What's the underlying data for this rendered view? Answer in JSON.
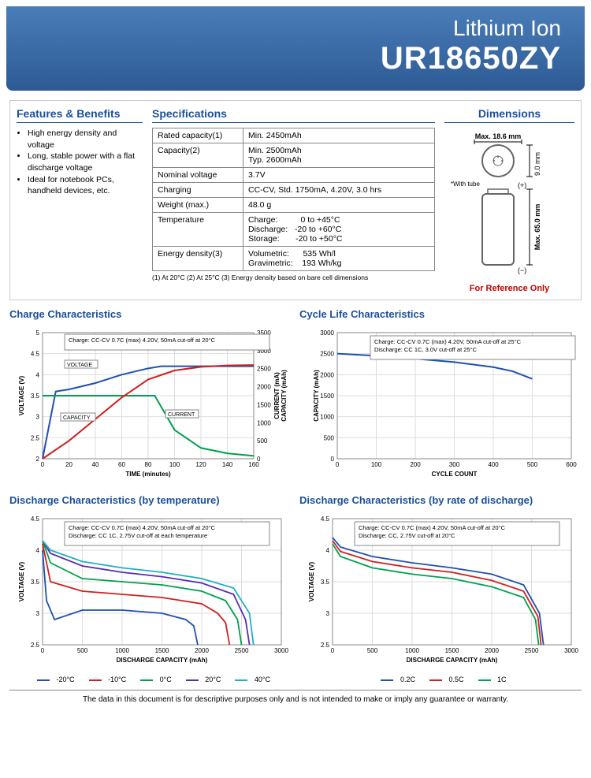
{
  "header": {
    "subtitle": "Lithium Ion",
    "title": "UR18650ZY"
  },
  "features": {
    "title": "Features & Benefits",
    "items": [
      "High energy density and voltage",
      "Long, stable power with a flat discharge voltage",
      "Ideal for notebook PCs, handheld devices, etc."
    ]
  },
  "specs": {
    "title": "Specifications",
    "rows": [
      {
        "k": "Rated capacity(1)",
        "v": "Min. 2450mAh"
      },
      {
        "k": "Capacity(2)",
        "v": "Min. 2500mAh\nTyp. 2600mAh"
      },
      {
        "k": "Nominal voltage",
        "v": "3.7V"
      },
      {
        "k": "Charging",
        "v": "CC-CV, Std. 1750mA, 4.20V, 3.0 hrs"
      },
      {
        "k": "Weight (max.)",
        "v": "48.0 g"
      },
      {
        "k": "Temperature",
        "v": "Charge:          0 to +45°C\nDischarge:   -20 to +60°C\nStorage:       -20 to +50°C"
      },
      {
        "k": "Energy density(3)",
        "v": "Volumetric:      535 Wh/l\nGravimetric:    193 Wh/kg"
      }
    ],
    "footnote": "(1) At 20°C  (2) At 25°C  (3) Energy density based on bare cell dimensions"
  },
  "dimensions": {
    "title": "Dimensions",
    "width_label": "Max. 18.6 mm",
    "height_label": "Max. 65.0 mm",
    "top_height": "9.0 mm",
    "with_tube": "*With tube",
    "plus": "(+)",
    "minus": "(−)",
    "ref": "For Reference Only"
  },
  "charge_chart": {
    "title": "Charge Characteristics",
    "caption": "Charge:    CC-CV 0.7C (max) 4.20V, 50mA cut-off at 20°C",
    "xlabel": "TIME (minutes)",
    "ylabel_left": "VOLTAGE (V)",
    "ylabel_right": "CURRENT (mA)\nCAPACITY (mAh)",
    "x_ticks": [
      0,
      20,
      40,
      60,
      80,
      100,
      120,
      140,
      160
    ],
    "y_left_ticks": [
      2.0,
      2.5,
      3.0,
      3.5,
      4.0,
      4.5,
      5.0
    ],
    "y_right_ticks": [
      0,
      500,
      1000,
      1500,
      2000,
      2500,
      3000,
      3500
    ],
    "labels": {
      "voltage": "VOLTAGE",
      "capacity": "CAPACITY",
      "current": "CURRENT"
    },
    "voltage": {
      "color": "#2050b0",
      "x": [
        0,
        10,
        20,
        40,
        60,
        80,
        90,
        100,
        120,
        140,
        160
      ],
      "y": [
        2.0,
        3.6,
        3.65,
        3.8,
        4.0,
        4.15,
        4.2,
        4.2,
        4.2,
        4.2,
        4.2
      ]
    },
    "current": {
      "color": "#00a050",
      "x": [
        0,
        20,
        40,
        60,
        80,
        85,
        100,
        120,
        140,
        160
      ],
      "y_right": [
        1750,
        1750,
        1750,
        1750,
        1750,
        1750,
        800,
        300,
        150,
        80
      ]
    },
    "capacity": {
      "color": "#d02020",
      "x": [
        0,
        20,
        40,
        60,
        80,
        100,
        120,
        140,
        160
      ],
      "y_right": [
        0,
        500,
        1100,
        1700,
        2200,
        2450,
        2550,
        2590,
        2600
      ]
    }
  },
  "cycle_chart": {
    "title": "Cycle Life Characteristics",
    "caption": "Charge:    CC-CV 0.7C (max) 4.20V, 50mA cut-off at 25°C\nDischarge: CC 1C, 3.0V cut-off at 25°C",
    "xlabel": "CYCLE COUNT",
    "ylabel": "CAPACITY (mAh)",
    "x_ticks": [
      0,
      100,
      200,
      300,
      400,
      500,
      600
    ],
    "y_ticks": [
      0,
      500,
      1000,
      1500,
      2000,
      2500,
      3000
    ],
    "line": {
      "color": "#2050b0",
      "x": [
        0,
        100,
        200,
        300,
        400,
        450,
        500
      ],
      "y": [
        2500,
        2450,
        2380,
        2300,
        2180,
        2080,
        1900
      ]
    }
  },
  "discharge_temp": {
    "title": "Discharge Characteristics (by temperature)",
    "caption": "Charge:    CC-CV 0.7C (max) 4.20V, 50mA cut-off at 20°C\nDischarge: CC 1C, 2.75V cut-off at each temperature",
    "xlabel": "DISCHARGE CAPACITY (mAh)",
    "ylabel": "VOLTAGE (V)",
    "x_ticks": [
      0,
      500,
      1000,
      1500,
      2000,
      2500,
      3000
    ],
    "y_ticks": [
      2.5,
      3.0,
      3.5,
      4.0,
      4.5
    ],
    "series": [
      {
        "name": "-20°C",
        "color": "#2050b0",
        "x": [
          0,
          50,
          150,
          500,
          1000,
          1500,
          1800,
          1900,
          1950
        ],
        "y": [
          4.0,
          3.2,
          2.9,
          3.05,
          3.05,
          3.0,
          2.9,
          2.8,
          2.5
        ]
      },
      {
        "name": "-10°C",
        "color": "#d02020",
        "x": [
          0,
          100,
          500,
          1000,
          1500,
          2000,
          2200,
          2300,
          2350
        ],
        "y": [
          4.1,
          3.5,
          3.35,
          3.3,
          3.25,
          3.15,
          3.0,
          2.85,
          2.5
        ]
      },
      {
        "name": "0°C",
        "color": "#00a050",
        "x": [
          0,
          100,
          500,
          1000,
          1500,
          2000,
          2300,
          2450,
          2500
        ],
        "y": [
          4.15,
          3.8,
          3.55,
          3.5,
          3.45,
          3.35,
          3.2,
          2.9,
          2.5
        ]
      },
      {
        "name": "20°C",
        "color": "#5a2db0",
        "x": [
          0,
          100,
          500,
          1000,
          1500,
          2000,
          2400,
          2550,
          2600
        ],
        "y": [
          4.15,
          3.95,
          3.75,
          3.65,
          3.58,
          3.48,
          3.3,
          2.9,
          2.5
        ]
      },
      {
        "name": "40°C",
        "color": "#20b0c0",
        "x": [
          0,
          100,
          500,
          1000,
          1500,
          2000,
          2400,
          2600,
          2650
        ],
        "y": [
          4.15,
          4.0,
          3.82,
          3.72,
          3.65,
          3.55,
          3.4,
          3.0,
          2.5
        ]
      }
    ]
  },
  "discharge_rate": {
    "title": "Discharge Characteristics (by rate of discharge)",
    "caption": "Charge:    CC-CV 0.7C (max) 4.20V, 50mA cut-off at 20°C\nDischarge: CC, 2.75V cut-off at 20°C",
    "xlabel": "DISCHARGE CAPACITY (mAh)",
    "ylabel": "VOLTAGE (V)",
    "x_ticks": [
      0,
      500,
      1000,
      1500,
      2000,
      2500,
      3000
    ],
    "y_ticks": [
      2.5,
      3.0,
      3.5,
      4.0,
      4.5
    ],
    "series": [
      {
        "name": "0.2C",
        "color": "#2050b0",
        "x": [
          0,
          100,
          500,
          1000,
          1500,
          2000,
          2400,
          2600,
          2650
        ],
        "y": [
          4.2,
          4.05,
          3.9,
          3.8,
          3.72,
          3.62,
          3.45,
          3.0,
          2.5
        ]
      },
      {
        "name": "0.5C",
        "color": "#d02020",
        "x": [
          0,
          100,
          500,
          1000,
          1500,
          2000,
          2400,
          2580,
          2620
        ],
        "y": [
          4.15,
          3.98,
          3.82,
          3.72,
          3.65,
          3.52,
          3.35,
          2.95,
          2.5
        ]
      },
      {
        "name": "1C",
        "color": "#00a050",
        "x": [
          0,
          100,
          500,
          1000,
          1500,
          2000,
          2400,
          2550,
          2590
        ],
        "y": [
          4.1,
          3.9,
          3.72,
          3.62,
          3.55,
          3.42,
          3.25,
          2.9,
          2.5
        ]
      }
    ]
  },
  "disclaimer": "The data in this document is for descriptive purposes only and is not intended to make or imply any guarantee or warranty."
}
